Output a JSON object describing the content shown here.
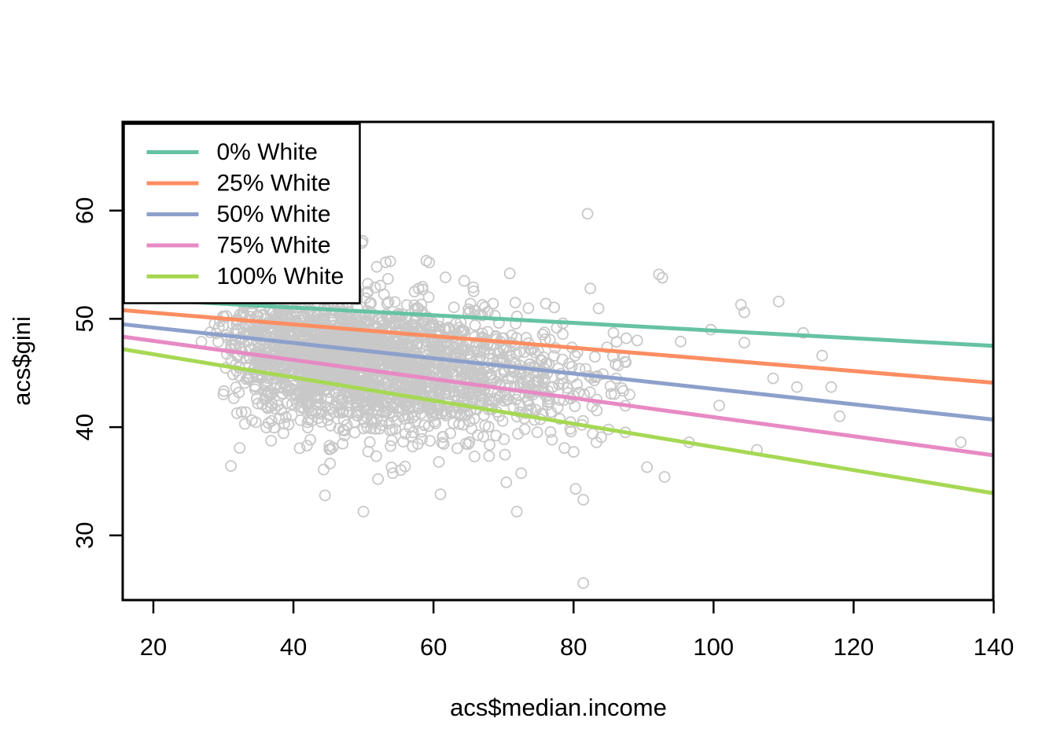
{
  "chart_data": {
    "type": "scatter",
    "title": "",
    "xlabel": "acs$median.income",
    "ylabel": "acs$gini",
    "x_ticks": [
      20,
      40,
      60,
      80,
      100,
      120,
      140
    ],
    "y_ticks": [
      30,
      40,
      50,
      60
    ],
    "xlim": [
      15.6,
      140
    ],
    "ylim": [
      24,
      68.2
    ],
    "grid": false,
    "axis_color": "#000000",
    "background_color": "#ffffff",
    "legend": {
      "position": "topleft",
      "entries": [
        {
          "label": "0% White",
          "color": "#66C2A5"
        },
        {
          "label": "25% White",
          "color": "#FC8D62"
        },
        {
          "label": "50% White",
          "color": "#8DA0CB"
        },
        {
          "label": "75% White",
          "color": "#E78AC3"
        },
        {
          "label": "100% White",
          "color": "#A6D854"
        }
      ]
    },
    "regression_lines": [
      {
        "label": "0% White",
        "color": "#66C2A5",
        "x1": 15.62,
        "y1": 51.9,
        "x2": 139.95,
        "y2": 47.5
      },
      {
        "label": "25% White",
        "color": "#FC8D62",
        "x1": 15.62,
        "y1": 50.8,
        "x2": 139.95,
        "y2": 44.1
      },
      {
        "label": "50% White",
        "color": "#8DA0CB",
        "x1": 15.62,
        "y1": 49.5,
        "x2": 139.95,
        "y2": 40.7
      },
      {
        "label": "75% White",
        "color": "#E78AC3",
        "x1": 15.62,
        "y1": 48.35,
        "x2": 139.95,
        "y2": 37.4
      },
      {
        "label": "100% White",
        "color": "#A6D854",
        "x1": 15.62,
        "y1": 47.2,
        "x2": 139.95,
        "y2": 33.9
      }
    ],
    "scatter": {
      "marker": "open-circle",
      "color": "#C8C8C8",
      "radius": 6.5,
      "stroke_width": 1.8,
      "cloud": {
        "description": "dense cloud of ~2450 census observations, approximated by seeded generator",
        "seed": 42,
        "n": 2450,
        "x_base": 26,
        "x_gamma_shape": 4,
        "x_gamma_scale": 6.5,
        "x_max": 88,
        "y_intercept": 49.8,
        "y_slope": -0.075,
        "y_sd": 2.9,
        "y_sd_wide": 4.6,
        "wide_fraction": 0.12,
        "y_min": 31.5,
        "y_max": 57.3
      },
      "outliers": [
        [
          82.0,
          59.7
        ],
        [
          81.4,
          25.6
        ],
        [
          49.9,
          57.2
        ],
        [
          51.9,
          54.8
        ],
        [
          53.5,
          53.7
        ],
        [
          59.4,
          55.2
        ],
        [
          64.4,
          53.5
        ],
        [
          68.5,
          51.4
        ],
        [
          70.9,
          54.2
        ],
        [
          82.4,
          52.8
        ],
        [
          92.2,
          54.1
        ],
        [
          92.7,
          53.8
        ],
        [
          104.4,
          50.6
        ],
        [
          109.3,
          51.6
        ],
        [
          103.9,
          51.3
        ],
        [
          99.6,
          49.0
        ],
        [
          112.8,
          48.7
        ],
        [
          95.3,
          47.9
        ],
        [
          104.4,
          47.8
        ],
        [
          115.5,
          46.6
        ],
        [
          108.5,
          44.5
        ],
        [
          111.9,
          43.7
        ],
        [
          116.8,
          43.7
        ],
        [
          89.1,
          48.0
        ],
        [
          85.7,
          48.7
        ],
        [
          135.3,
          38.6
        ],
        [
          96.5,
          38.6
        ],
        [
          93.0,
          35.4
        ],
        [
          90.5,
          36.3
        ],
        [
          88.0,
          43.0
        ],
        [
          86.0,
          45.8
        ],
        [
          118.0,
          41.0
        ],
        [
          71.9,
          32.2
        ],
        [
          81.4,
          33.3
        ],
        [
          70.4,
          34.9
        ],
        [
          80.3,
          34.3
        ],
        [
          61.0,
          33.8
        ],
        [
          50.0,
          32.2
        ],
        [
          44.5,
          33.7
        ],
        [
          100.8,
          42.0
        ],
        [
          106.2,
          37.9
        ]
      ]
    }
  }
}
